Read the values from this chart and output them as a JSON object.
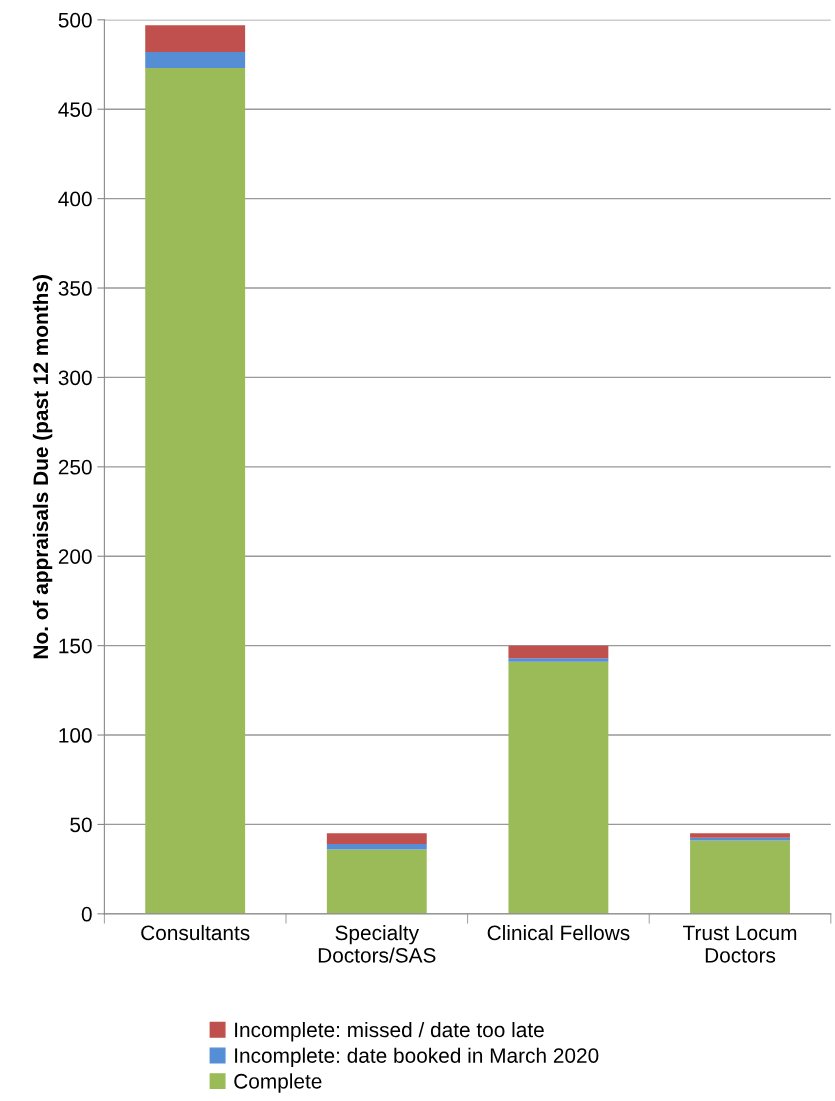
{
  "chart_data": {
    "type": "bar",
    "stacked": true,
    "ylabel": "No. of appraisals Due (past 12 months)",
    "categories": [
      "Consultants",
      "Specialty\nDoctors/SAS",
      "Clinical Fellows",
      "Trust Locum\nDoctors"
    ],
    "series": [
      {
        "name": "Complete",
        "color": "#9bbb59",
        "values": [
          473,
          36,
          141,
          41
        ]
      },
      {
        "name": "Incomplete: date booked in March 2020",
        "color": "#558ed5",
        "values": [
          9,
          3,
          2,
          1.5
        ]
      },
      {
        "name": "Incomplete: missed / date too late",
        "color": "#c0504d",
        "values": [
          15,
          6,
          7,
          2.5
        ]
      }
    ],
    "ylim": [
      0,
      500
    ],
    "yticks": [
      0,
      50,
      100,
      150,
      200,
      250,
      300,
      350,
      400,
      450,
      500
    ],
    "grid": "y",
    "legend": "bottom"
  }
}
